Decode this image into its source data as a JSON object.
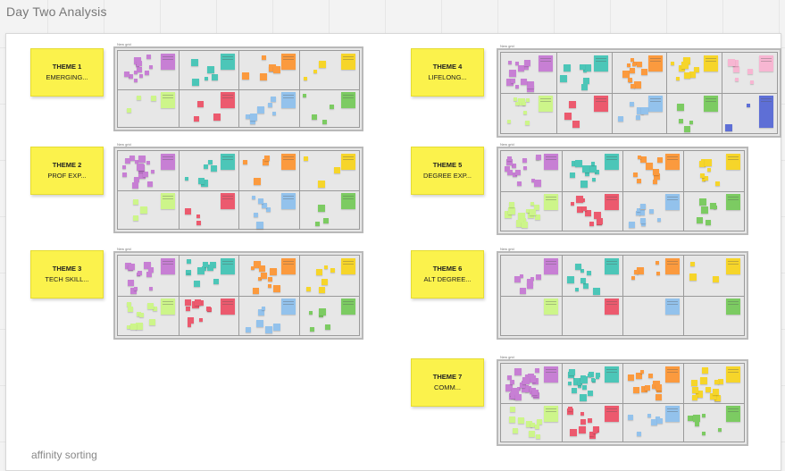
{
  "board": {
    "title": "Day Two Analysis",
    "footer": "affinity sorting"
  },
  "frame_label": "New grid",
  "colors": {
    "sticky": "#fbf24c",
    "purple": "#c77fd4",
    "teal": "#4cc6b8",
    "orange": "#fb9a3e",
    "yellow": "#f6d52a",
    "lightgreen": "#cdf58a",
    "red": "#ec5a6e",
    "blue": "#93c2ec",
    "green": "#7ccb62",
    "pink": "#f7b6d2",
    "navy": "#5e6fd6"
  },
  "themes": [
    {
      "heading": "THEME 1",
      "name": "EMERGING..."
    },
    {
      "heading": "THEME 2",
      "name": "PROF EXP..."
    },
    {
      "heading": "THEME 3",
      "name": "TECH SKILL..."
    },
    {
      "heading": "THEME 4",
      "name": "LIFELONG..."
    },
    {
      "heading": "THEME 5",
      "name": "DEGREE EXP..."
    },
    {
      "heading": "THEME 6",
      "name": "ALT DEGREE..."
    },
    {
      "heading": "THEME 7",
      "name": "COMM..."
    }
  ]
}
